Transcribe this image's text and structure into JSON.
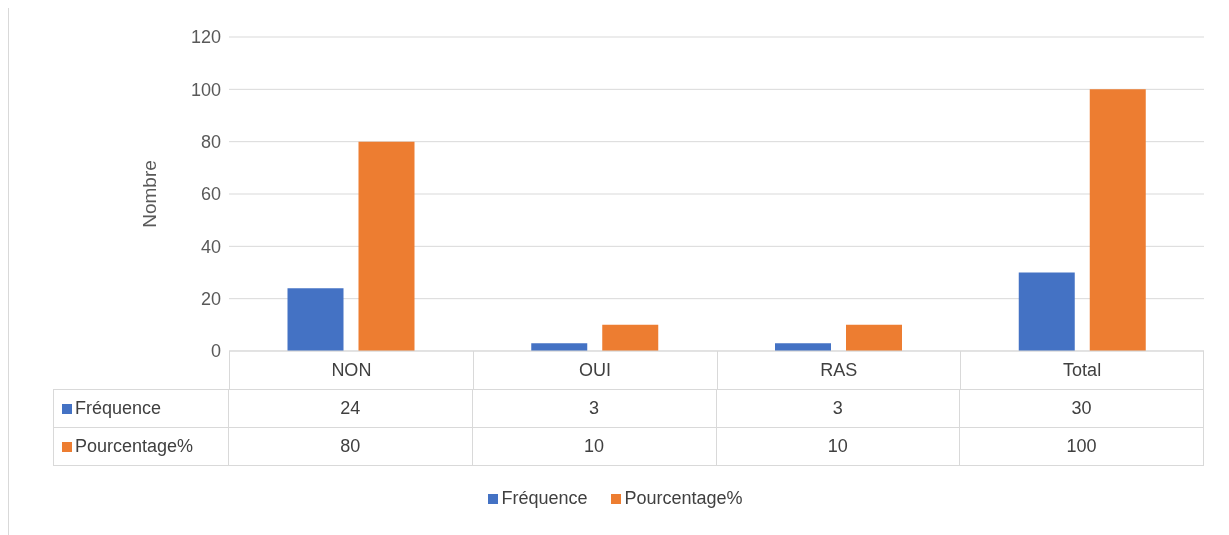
{
  "chart_data": {
    "type": "bar",
    "ylabel": "Nombre",
    "categories": [
      "NON",
      "OUI",
      "RAS",
      "Total"
    ],
    "series": [
      {
        "name": "Fréquence",
        "color": "#4472c4",
        "values": [
          24,
          3,
          3,
          30
        ]
      },
      {
        "name": "Pourcentage%",
        "color": "#ed7d31",
        "values": [
          80,
          10,
          10,
          100
        ]
      }
    ],
    "ylim": [
      0,
      120
    ],
    "yticks": [
      0,
      20,
      40,
      60,
      80,
      100,
      120
    ],
    "grid": "y",
    "legend": "bottom",
    "data_labels": true
  }
}
